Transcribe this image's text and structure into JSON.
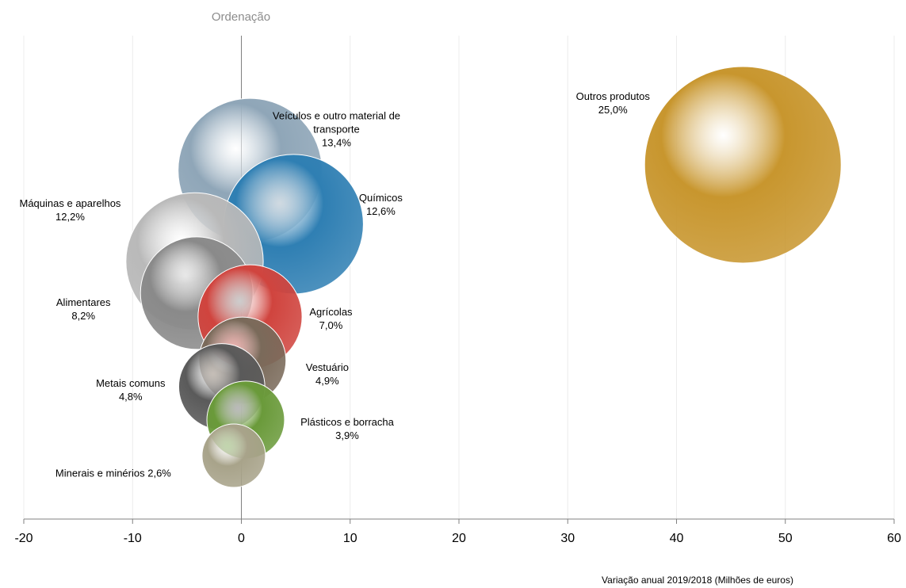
{
  "chart_data": {
    "type": "bubble",
    "y_axis_title": "Ordenação",
    "x_axis_title": "Variação anual 2019/2018 (Milhões de euros)",
    "xlim": [
      -20,
      60
    ],
    "xticks": [
      -20,
      -10,
      0,
      10,
      20,
      30,
      40,
      50,
      60
    ],
    "ylim": [
      0,
      100
    ],
    "grid": true,
    "series": [
      {
        "names": [
          "Outros produtos",
          "Veículos e outro material de transporte",
          "Químicos",
          "Máquinas e aparelhos",
          "Alimentares",
          "Agrícolas",
          "Vestuário",
          "Metais comuns",
          "Plásticos e borracha",
          "Minerais e minérios"
        ],
        "x": [
          46.1,
          0.8,
          4.8,
          -4.3,
          -4.1,
          0.8,
          0.1,
          -1.8,
          0.4,
          -0.7
        ],
        "y": [
          70.4,
          69.3,
          58.6,
          51.2,
          44.9,
          40.2,
          31.5,
          26.3,
          19.7,
          12.6
        ],
        "values": [
          25.0,
          13.4,
          12.6,
          12.2,
          8.2,
          7.0,
          4.9,
          4.8,
          3.9,
          2.6
        ],
        "value_labels": [
          "25,0%",
          "13,4%",
          "12,6%",
          "12,2%",
          "8,2%",
          "7,0%",
          "4,9%",
          "4,8%",
          "3,9%",
          "2,6%"
        ],
        "colors": [
          "#c8962e",
          "#8fa6b8",
          "#2f7fb3",
          "#b9b9b9",
          "#8a8a8a",
          "#d0443e",
          "#7a6a5a",
          "#5a5a5a",
          "#6a9a3a",
          "#a8a38a"
        ]
      }
    ]
  }
}
